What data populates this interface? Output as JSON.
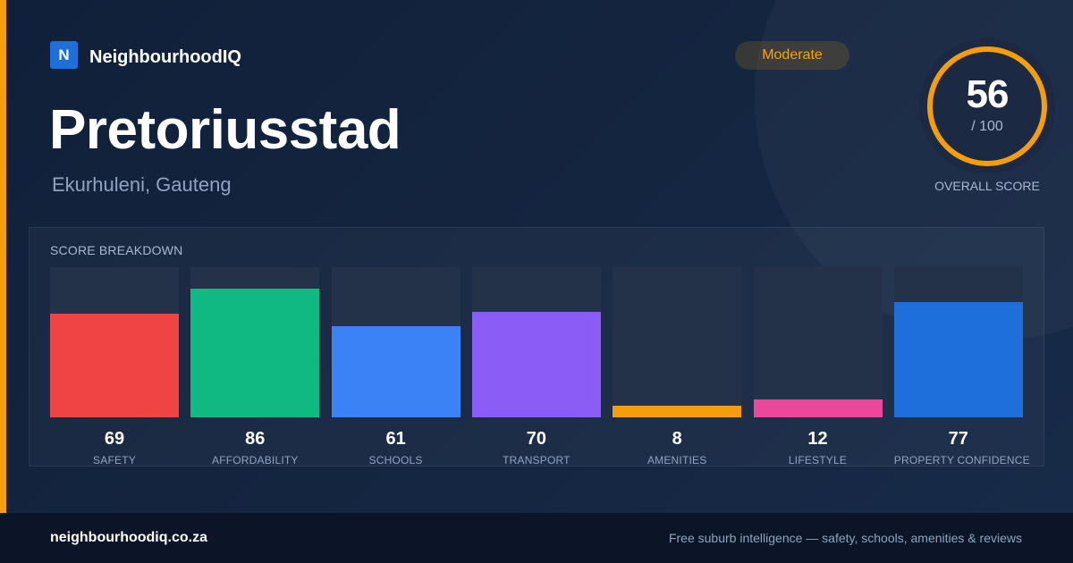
{
  "brand": {
    "logo_letter": "N",
    "name": "NeighbourhoodIQ"
  },
  "suburb": {
    "name": "Pretoriusstad",
    "location": "Ekurhuleni, Gauteng"
  },
  "rating_badge": "Moderate",
  "overall": {
    "score": "56",
    "max": "/ 100",
    "score_fraction": 0.56,
    "label": "OVERALL SCORE"
  },
  "breakdown": {
    "title": "SCORE BREAKDOWN",
    "items": [
      {
        "label": "SAFETY",
        "value": "69",
        "score": 69,
        "color": "#ef4444"
      },
      {
        "label": "AFFORDABILITY",
        "value": "86",
        "score": 86,
        "color": "#10b981"
      },
      {
        "label": "SCHOOLS",
        "value": "61",
        "score": 61,
        "color": "#3b82f6"
      },
      {
        "label": "TRANSPORT",
        "value": "70",
        "score": 70,
        "color": "#8b5cf6"
      },
      {
        "label": "AMENITIES",
        "value": "8",
        "score": 8,
        "color": "#f59e0b"
      },
      {
        "label": "LIFESTYLE",
        "value": "12",
        "score": 12,
        "color": "#ec4899"
      },
      {
        "label": "PROPERTY CONFIDENCE",
        "value": "77",
        "score": 77,
        "color": "#1e6fd9"
      }
    ]
  },
  "footer": {
    "url": "neighbourhoodiq.co.za",
    "tagline": "Free suburb intelligence — safety, schools, amenities & reviews"
  },
  "colors": {
    "accent": "#f59e0b",
    "brand_blue": "#1e6fd9",
    "ring_track": "#1f2c44"
  }
}
